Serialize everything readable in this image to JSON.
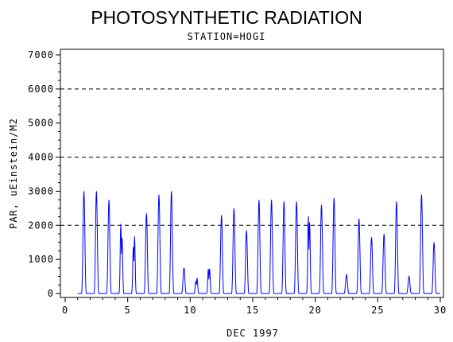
{
  "chart_data": {
    "type": "line",
    "title": "PHOTOSYNTHETIC RADIATION",
    "subtitle": "STATION=HOGI",
    "xlabel": "DEC 1997",
    "ylabel": "PAR, uEinstein/M2",
    "xlim": [
      0,
      30
    ],
    "ylim": [
      0,
      7000
    ],
    "xticks": [
      0,
      5,
      10,
      15,
      20,
      25,
      30
    ],
    "yticks": [
      0,
      1000,
      2000,
      3000,
      4000,
      5000,
      6000,
      7000
    ],
    "reference_lines": [
      2000,
      4000,
      6000
    ],
    "grid": false,
    "line_color": "#0000ff",
    "daily_peaks": [
      {
        "day": 1,
        "peaks": [
          3000
        ]
      },
      {
        "day": 2,
        "peaks": [
          3000
        ]
      },
      {
        "day": 3,
        "peaks": [
          2750
        ]
      },
      {
        "day": 4,
        "peaks": [
          2250,
          1800
        ]
      },
      {
        "day": 5,
        "peaks": [
          1500,
          1850
        ]
      },
      {
        "day": 6,
        "peaks": [
          2350
        ]
      },
      {
        "day": 7,
        "peaks": [
          2900
        ]
      },
      {
        "day": 8,
        "peaks": [
          3000
        ]
      },
      {
        "day": 9,
        "peaks": [
          750
        ]
      },
      {
        "day": 10,
        "peaks": [
          400,
          500
        ]
      },
      {
        "day": 11,
        "peaks": [
          800,
          800
        ]
      },
      {
        "day": 12,
        "peaks": [
          2300
        ]
      },
      {
        "day": 13,
        "peaks": [
          2500
        ]
      },
      {
        "day": 14,
        "peaks": [
          1850
        ]
      },
      {
        "day": 15,
        "peaks": [
          2750
        ]
      },
      {
        "day": 16,
        "peaks": [
          2750
        ]
      },
      {
        "day": 17,
        "peaks": [
          2700
        ]
      },
      {
        "day": 18,
        "peaks": [
          2700
        ]
      },
      {
        "day": 19,
        "peaks": [
          2500,
          2300
        ]
      },
      {
        "day": 20,
        "peaks": [
          2600
        ]
      },
      {
        "day": 21,
        "peaks": [
          2800
        ]
      },
      {
        "day": 22,
        "peaks": [
          550
        ]
      },
      {
        "day": 23,
        "peaks": [
          2200
        ]
      },
      {
        "day": 24,
        "peaks": [
          1650
        ]
      },
      {
        "day": 25,
        "peaks": [
          1750
        ]
      },
      {
        "day": 26,
        "peaks": [
          2700
        ]
      },
      {
        "day": 27,
        "peaks": [
          500
        ]
      },
      {
        "day": 28,
        "peaks": [
          2900
        ]
      },
      {
        "day": 29,
        "peaks": [
          1500
        ]
      }
    ]
  }
}
